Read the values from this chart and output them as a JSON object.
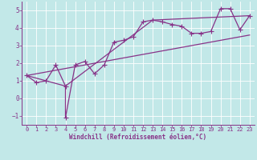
{
  "xlabel": "Windchill (Refroidissement éolien,°C)",
  "bg_color": "#c2e8e8",
  "line_color": "#883388",
  "grid_color": "#ffffff",
  "xlim": [
    -0.5,
    23.5
  ],
  "ylim": [
    -1.5,
    5.5
  ],
  "xticks": [
    0,
    1,
    2,
    3,
    4,
    5,
    6,
    7,
    8,
    9,
    10,
    11,
    12,
    13,
    14,
    15,
    16,
    17,
    18,
    19,
    20,
    21,
    22,
    23
  ],
  "yticks": [
    -1,
    0,
    1,
    2,
    3,
    4,
    5
  ],
  "line1_x": [
    0,
    1,
    2,
    3,
    4,
    4,
    5,
    6,
    7,
    8,
    9,
    10,
    11,
    12,
    13,
    14,
    15,
    16,
    17,
    18,
    19,
    20,
    21,
    22,
    23
  ],
  "line1_y": [
    1.3,
    0.9,
    1.0,
    1.9,
    0.7,
    -1.1,
    1.9,
    2.1,
    1.4,
    1.9,
    3.2,
    3.3,
    3.5,
    4.35,
    4.45,
    4.35,
    4.2,
    4.1,
    3.7,
    3.7,
    3.8,
    5.1,
    5.1,
    3.9,
    4.7
  ],
  "line2_x": [
    0,
    23
  ],
  "line2_y": [
    1.3,
    3.6
  ],
  "line3_x": [
    0,
    4,
    13,
    23
  ],
  "line3_y": [
    1.3,
    0.7,
    4.45,
    4.7
  ],
  "tick_fontsize": 5.0,
  "xlabel_fontsize": 5.5,
  "marker_size": 2.5,
  "linewidth": 0.9
}
